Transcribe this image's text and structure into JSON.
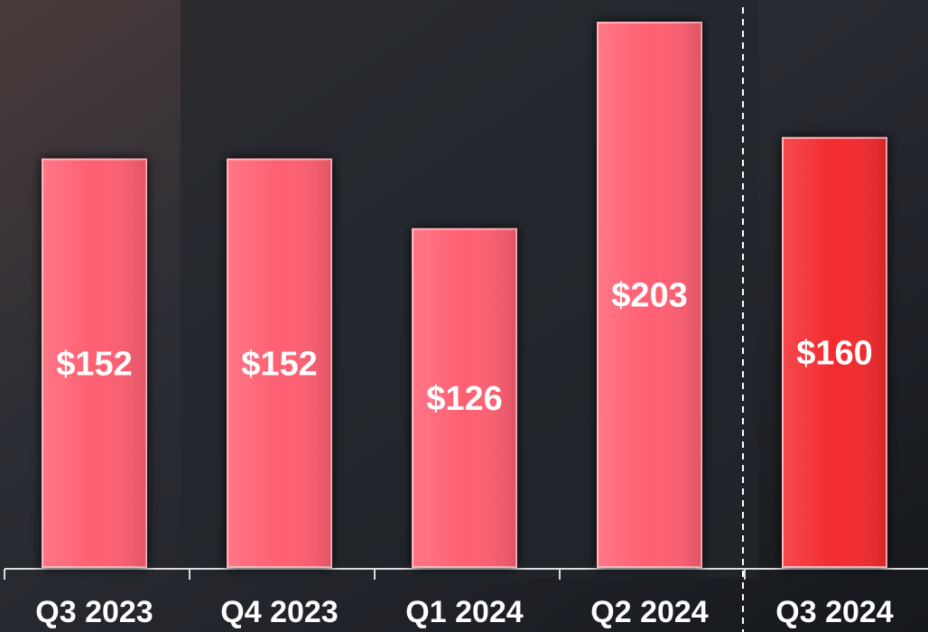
{
  "chart_data": {
    "type": "bar",
    "categories": [
      "Q3 2023",
      "Q4 2023",
      "Q1 2024",
      "Q2 2024",
      "Q3 2024"
    ],
    "values": [
      152,
      152,
      126,
      203,
      160
    ],
    "value_labels": [
      "$152",
      "$152",
      "$126",
      "$203",
      "$160"
    ],
    "colors": [
      "#ff5f72",
      "#ff5f72",
      "#ff5f72",
      "#ff5f72",
      "#f42c2e"
    ]
  }
}
